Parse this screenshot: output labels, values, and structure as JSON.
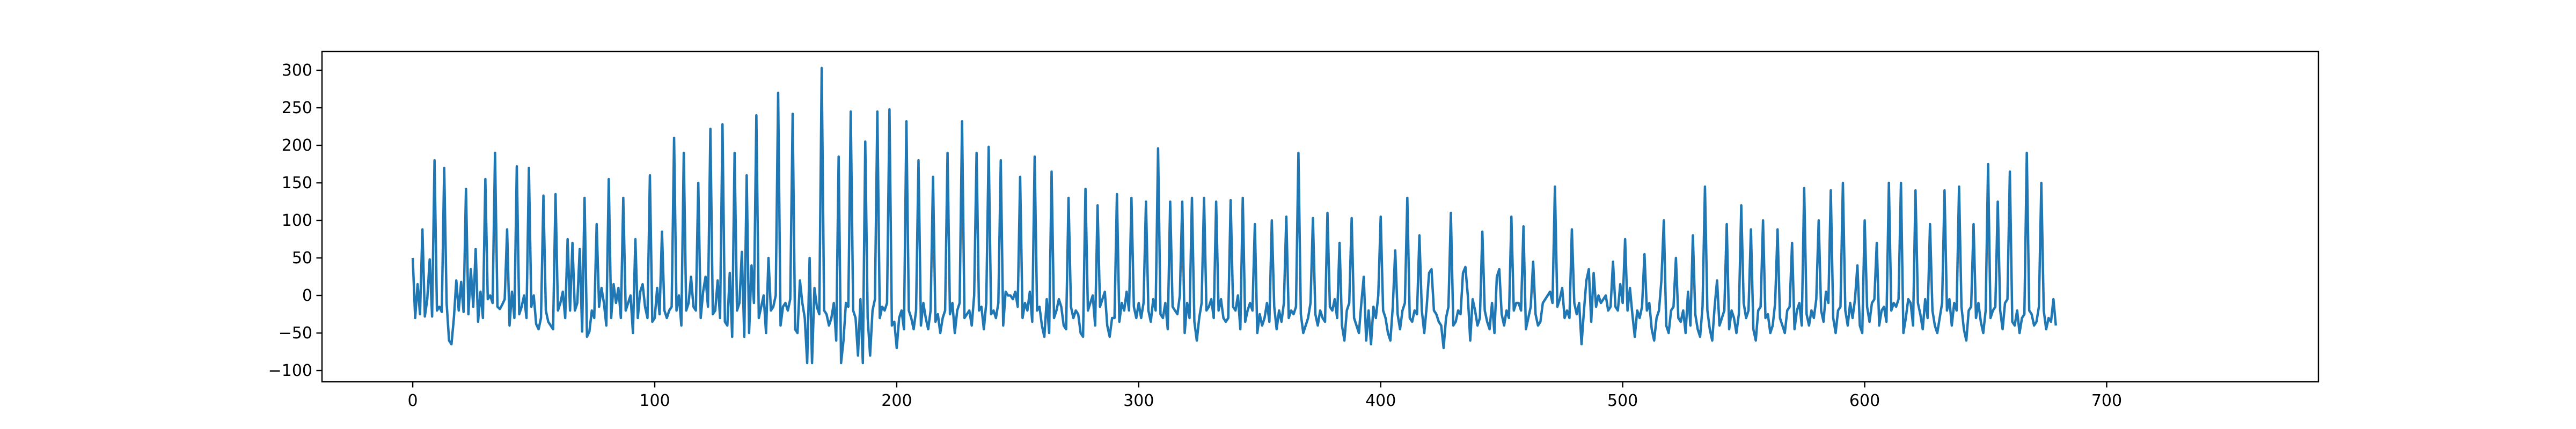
{
  "chart_data": {
    "type": "line",
    "title": "",
    "xlabel": "",
    "ylabel": "",
    "xlim": [
      -37.5,
      787.5
    ],
    "ylim": [
      -115,
      325
    ],
    "grid": false,
    "x_ticks": [
      0,
      100,
      200,
      300,
      400,
      500,
      600,
      700
    ],
    "y_ticks": [
      -100,
      -50,
      0,
      50,
      100,
      150,
      200,
      250,
      300
    ],
    "series": [
      {
        "color": "#1f77b4",
        "x_start": 0,
        "x_step": 1,
        "values": [
          50,
          -30,
          15,
          -25,
          88,
          -28,
          -5,
          48,
          -28,
          180,
          -20,
          -15,
          -22,
          170,
          -10,
          -60,
          -65,
          -30,
          20,
          -20,
          18,
          -22,
          142,
          -25,
          35,
          -15,
          62,
          -35,
          5,
          -30,
          155,
          -5,
          0,
          -10,
          190,
          -15,
          -18,
          -12,
          -5,
          88,
          -40,
          5,
          -30,
          172,
          -25,
          -15,
          0,
          -30,
          170,
          -15,
          0,
          -38,
          -45,
          -30,
          133,
          -20,
          -35,
          -40,
          -45,
          135,
          -20,
          -10,
          5,
          -30,
          75,
          -20,
          70,
          -20,
          -10,
          62,
          -48,
          130,
          -55,
          -48,
          -20,
          -30,
          95,
          -15,
          10,
          -10,
          -40,
          155,
          -30,
          15,
          -10,
          10,
          -30,
          130,
          -20,
          -10,
          0,
          -50,
          75,
          -30,
          5,
          15,
          -15,
          -30,
          160,
          -35,
          -30,
          10,
          -25,
          85,
          -20,
          -30,
          -20,
          -15,
          210,
          -20,
          0,
          -40,
          190,
          -20,
          -10,
          25,
          -15,
          -20,
          150,
          -30,
          5,
          25,
          -15,
          222,
          -25,
          -20,
          20,
          -30,
          228,
          -35,
          -40,
          30,
          -55,
          190,
          -20,
          -10,
          58,
          -55,
          160,
          -50,
          40,
          -10,
          240,
          -30,
          -15,
          0,
          -50,
          50,
          -20,
          -15,
          0,
          270,
          -40,
          -15,
          -10,
          -20,
          -5,
          242,
          -45,
          -50,
          20,
          -10,
          -30,
          -90,
          50,
          -90,
          10,
          -15,
          -25,
          303,
          -20,
          -25,
          -40,
          -30,
          -10,
          -60,
          185,
          -90,
          -60,
          -10,
          -15,
          245,
          -20,
          -30,
          -80,
          -5,
          -90,
          205,
          -30,
          -80,
          -20,
          -5,
          245,
          -30,
          -15,
          -20,
          -10,
          248,
          -40,
          -35,
          -70,
          -30,
          -20,
          -45,
          232,
          -20,
          -30,
          -45,
          -20,
          180,
          -40,
          -10,
          -30,
          -45,
          -20,
          158,
          -35,
          -25,
          -50,
          -30,
          -20,
          190,
          -25,
          -10,
          -50,
          -20,
          -10,
          232,
          -30,
          -25,
          -20,
          -40,
          0,
          190,
          -20,
          -15,
          -45,
          -10,
          198,
          -25,
          -20,
          -30,
          -10,
          180,
          -40,
          5,
          0,
          0,
          -5,
          5,
          -15,
          158,
          -30,
          -10,
          -20,
          5,
          -35,
          185,
          -20,
          -15,
          -40,
          -55,
          -5,
          -50,
          165,
          -30,
          -20,
          -5,
          -15,
          -40,
          -45,
          130,
          -15,
          -30,
          -20,
          -25,
          -50,
          -55,
          142,
          -20,
          -10,
          0,
          -40,
          120,
          -15,
          -5,
          5,
          -40,
          -55,
          -30,
          -30,
          135,
          -35,
          -10,
          -20,
          5,
          -20,
          130,
          -15,
          -30,
          -10,
          -30,
          -10,
          125,
          -20,
          -35,
          -5,
          -20,
          196,
          -25,
          -30,
          -10,
          -45,
          125,
          -15,
          -20,
          -25,
          0,
          125,
          -50,
          -10,
          -30,
          130,
          -35,
          -60,
          -30,
          -10,
          130,
          -20,
          -15,
          -5,
          -30,
          125,
          -20,
          -5,
          -30,
          -35,
          -30,
          127,
          -15,
          -20,
          0,
          -45,
          130,
          -35,
          -20,
          -10,
          -20,
          95,
          -50,
          -25,
          -40,
          -30,
          -10,
          -35,
          100,
          -15,
          -45,
          -20,
          -35,
          -10,
          105,
          -30,
          -20,
          -25,
          -15,
          190,
          -25,
          -50,
          -40,
          -30,
          -10,
          103,
          -25,
          -40,
          -20,
          -30,
          -35,
          110,
          -15,
          -20,
          -5,
          -30,
          70,
          -40,
          -60,
          -20,
          -10,
          103,
          -30,
          -40,
          -50,
          -10,
          25,
          -60,
          -20,
          -65,
          -15,
          -30,
          0,
          105,
          -20,
          -30,
          -50,
          -60,
          -15,
          60,
          -25,
          -45,
          -20,
          -10,
          130,
          -30,
          -35,
          -20,
          -25,
          80,
          -20,
          -50,
          -15,
          30,
          35,
          -20,
          -25,
          -35,
          -40,
          -70,
          -30,
          -15,
          110,
          -40,
          -35,
          -20,
          -25,
          30,
          38,
          0,
          -60,
          -5,
          -20,
          -40,
          -30,
          85,
          -20,
          -35,
          -45,
          -10,
          -50,
          25,
          35,
          -25,
          -40,
          -20,
          -30,
          105,
          -20,
          -10,
          -10,
          -20,
          92,
          -45,
          -30,
          -15,
          45,
          -25,
          -40,
          -35,
          -10,
          -5,
          0,
          5,
          -10,
          145,
          -15,
          -5,
          10,
          -30,
          -20,
          -30,
          88,
          -10,
          -25,
          -10,
          -65,
          -20,
          20,
          35,
          -35,
          30,
          -15,
          0,
          -10,
          -5,
          0,
          -20,
          -15,
          45,
          -15,
          -20,
          15,
          -10,
          75,
          -20,
          10,
          -25,
          -55,
          -20,
          -30,
          -15,
          55,
          -20,
          -10,
          -45,
          -60,
          -30,
          -20,
          20,
          100,
          -40,
          -50,
          -20,
          -15,
          50,
          -30,
          -35,
          -20,
          -50,
          5,
          -40,
          80,
          -25,
          -45,
          -55,
          -15,
          145,
          -20,
          -45,
          -60,
          -15,
          20,
          -40,
          -30,
          -20,
          95,
          -45,
          -20,
          -30,
          -50,
          -25,
          120,
          -10,
          -30,
          -20,
          88,
          -45,
          -60,
          -20,
          -15,
          100,
          -30,
          -25,
          -50,
          -40,
          -10,
          88,
          -30,
          -40,
          -50,
          -20,
          -15,
          70,
          -45,
          -20,
          -10,
          -40,
          143,
          -25,
          -40,
          -20,
          -30,
          -5,
          100,
          -20,
          -35,
          5,
          -10,
          140,
          -30,
          -50,
          -20,
          -15,
          150,
          -20,
          -40,
          -10,
          -30,
          -5,
          40,
          -40,
          -50,
          100,
          -15,
          -35,
          -10,
          -5,
          70,
          -40,
          -20,
          -15,
          -35,
          150,
          -20,
          -10,
          -15,
          -5,
          150,
          -50,
          -30,
          -5,
          -10,
          -40,
          140,
          -10,
          -25,
          -45,
          -5,
          -30,
          95,
          -20,
          -40,
          -50,
          -30,
          -10,
          140,
          -20,
          -5,
          -40,
          -10,
          -20,
          145,
          -15,
          -45,
          -60,
          -20,
          -15,
          95,
          -30,
          -10,
          -35,
          -50,
          -20,
          175,
          -30,
          -20,
          -15,
          125,
          -20,
          -45,
          -10,
          -5,
          165,
          -35,
          -40,
          -20,
          -50,
          -30,
          -25,
          190,
          -20,
          -25,
          -40,
          -35,
          -15,
          150,
          -20,
          -45,
          -30,
          -35,
          -5,
          -40
        ]
      }
    ]
  }
}
